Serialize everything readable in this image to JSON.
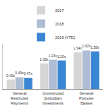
{
  "chart_data": {
    "type": "bar",
    "categories": [
      "General Restricted Payments",
      "Unrestricted Subsidiary Investments",
      "General Purpose Basket"
    ],
    "series": [
      {
        "name": "2017",
        "color": "#d6d6d6",
        "values": [
          0.4,
          1.08,
          1.54
        ],
        "value_labels": [
          "0.40x",
          "1.08x",
          "1.54x"
        ]
      },
      {
        "name": "2018",
        "color": "#aebdd3",
        "values": [
          0.49,
          1.23,
          1.62
        ],
        "value_labels": [
          "0.49x",
          "1.23x",
          "1.62x"
        ]
      },
      {
        "name": "2019 (YTD)",
        "color": "#3a86d4",
        "values": [
          0.47,
          1.2,
          1.58
        ],
        "value_labels": [
          "0.47x",
          "1.20x",
          "1.58x"
        ]
      }
    ],
    "ylim": [
      0,
      1.9
    ],
    "data_labels": true,
    "tick_labels": "x",
    "grid": false,
    "legend": "top"
  }
}
